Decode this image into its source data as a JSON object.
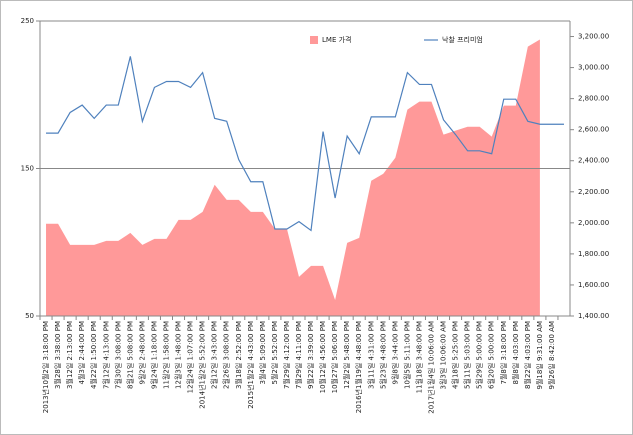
{
  "chart_data": {
    "type": "area_line",
    "categories": [
      "2013년10월2일 3:18:00 PM",
      "3월28일 3:38:00 PM",
      "3월12일 2:13:00 PM",
      "4월3일 2:44:00 PM",
      "4월22일 1:50:00 PM",
      "7월12일 4:13:00 PM",
      "7월30일 3:08:00 PM",
      "8월21일 5:08:00 PM",
      "9월2일 2:48:00 PM",
      "9월24일 1:18:00 PM",
      "11월2일 1:58:00 PM",
      "12월3일 1:48:00 PM",
      "12월24일 1:07:00 PM",
      "2014년1월2일 5:52:00 PM",
      "2월12일 3:43:00 PM",
      "2월26일 3:08:00 PM",
      "3월18일 2:52:00 PM",
      "2015년1월2일 4:43:00 PM",
      "3월4일 5:09:00 PM",
      "5월2일 5:52:00 PM",
      "7월29일 4:12:00 PM",
      "7월29일 4:11:00 PM",
      "9월22일 3:39:00 PM",
      "10월12일 4:56:00 PM",
      "10월27일 5:06:00 PM",
      "12월2일 5:48:00 PM",
      "2016년1월19일 4:48:00 PM",
      "3월11일 4:31:00 PM",
      "5월23일 4:48:00 PM",
      "9월8일 3:44:00 PM",
      "10월5일 5:11:00 PM",
      "11월18일 3:48:00 PM",
      "2017년1월4일 10:06:00 AM",
      "3월3일 10:06:00 AM",
      "4월18일 5:25:00 PM",
      "5월11일 5:03:00 PM",
      "5월29일 5:00:00 PM",
      "6월20일 5:00:00 PM",
      "7월8일 3:18:00 PM",
      "8월8일 4:03:00 PM",
      "8월22일 4:03:00 PM",
      "9월18일 9:31:00 AM",
      "9월26일 8:42:00 AM",
      null
    ],
    "series": [
      {
        "name": "LME 가격",
        "color": "#ff9999",
        "axis": "y2",
        "values": [
          1994,
          1994,
          1858,
          1858,
          1858,
          1884,
          1884,
          1935,
          1858,
          1897,
          1897,
          2019,
          2019,
          2071,
          2245,
          2148,
          2148,
          2071,
          2071,
          1961,
          1961,
          1652,
          1723,
          1723,
          1503,
          1871,
          1903,
          2271,
          2316,
          2419,
          2729,
          2781,
          2781,
          2568,
          2594,
          2619,
          2619,
          2555,
          2755,
          2755,
          3135,
          3181,
          null,
          null
        ]
      },
      {
        "name": "낙찰 프리미엄",
        "color": "#4f81bd",
        "values": [
          174,
          174,
          188,
          193,
          184,
          193,
          193,
          226,
          182,
          205,
          209,
          209,
          205,
          215,
          184,
          182,
          156,
          141,
          141,
          109,
          109,
          114,
          108,
          175,
          130,
          172,
          160,
          185,
          185,
          185,
          215,
          207,
          207,
          183,
          173,
          162,
          162,
          160,
          197,
          197,
          182,
          180,
          180,
          180
        ]
      }
    ],
    "ylim": [
      50,
      250
    ],
    "yticks": [
      50,
      150,
      250
    ],
    "grid": true,
    "y2lim": [
      1400,
      3300
    ],
    "y2ticks": [
      {
        "value": 1400,
        "label": "1,400.00"
      },
      {
        "value": 1600,
        "label": "1,600.00"
      },
      {
        "value": 1800,
        "label": "1,800.00"
      },
      {
        "value": 2000,
        "label": "2,000.00"
      },
      {
        "value": 2200,
        "label": "2,200.00"
      },
      {
        "value": 2400,
        "label": "2,400.00"
      },
      {
        "value": 2600,
        "label": "2,600.00"
      },
      {
        "value": 2800,
        "label": "2,800.00"
      },
      {
        "value": 3000,
        "label": "3,000.00"
      },
      {
        "value": 3200,
        "label": "3,200.00"
      }
    ],
    "legend": "top"
  }
}
